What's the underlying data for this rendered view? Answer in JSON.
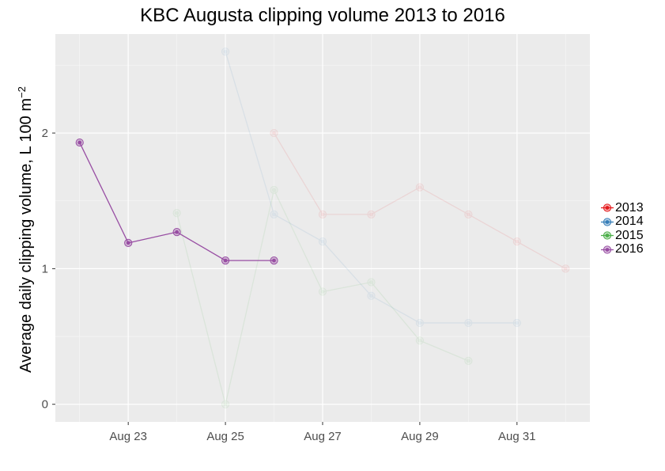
{
  "chart_data": {
    "type": "line",
    "title": "KBC Augusta clipping volume 2013 to 2016",
    "xlabel": "",
    "ylabel": "Average daily clipping volume, L 100 m",
    "ylabel_superscript": "−2",
    "x_ticks": [
      "Aug 23",
      "Aug 25",
      "Aug 27",
      "Aug 29",
      "Aug 31"
    ],
    "y_ticks": [
      "0",
      "1",
      "2"
    ],
    "xlim": [
      "Aug 21.5",
      "Aug 32.5"
    ],
    "ylim": [
      -0.13,
      2.73
    ],
    "grid": true,
    "legend_position": "right",
    "series": [
      {
        "name": "2013",
        "color": "#E41A1C",
        "opacity": 0.1,
        "points": [
          {
            "x": "Aug 26",
            "y": 2.0
          },
          {
            "x": "Aug 27",
            "y": 1.4
          },
          {
            "x": "Aug 28",
            "y": 1.4
          },
          {
            "x": "Aug 29",
            "y": 1.6
          },
          {
            "x": "Aug 30",
            "y": 1.4
          },
          {
            "x": "Aug 31",
            "y": 1.2
          },
          {
            "x": "Sep 1",
            "y": 1.0
          }
        ]
      },
      {
        "name": "2014",
        "color": "#377EB8",
        "opacity": 0.1,
        "points": [
          {
            "x": "Aug 25",
            "y": 2.6
          },
          {
            "x": "Aug 26",
            "y": 1.4
          },
          {
            "x": "Aug 27",
            "y": 1.2
          },
          {
            "x": "Aug 28",
            "y": 0.8
          },
          {
            "x": "Aug 29",
            "y": 0.6
          },
          {
            "x": "Aug 30",
            "y": 0.6
          },
          {
            "x": "Aug 31",
            "y": 0.6
          }
        ]
      },
      {
        "name": "2015",
        "color": "#4DAF4A",
        "opacity": 0.1,
        "points": [
          {
            "x": "Aug 24",
            "y": 1.41
          },
          {
            "x": "Aug 25",
            "y": 0.0
          },
          {
            "x": "Aug 26",
            "y": 1.58
          },
          {
            "x": "Aug 27",
            "y": 0.83
          },
          {
            "x": "Aug 28",
            "y": 0.9
          },
          {
            "x": "Aug 29",
            "y": 0.47
          },
          {
            "x": "Aug 30",
            "y": 0.32
          }
        ]
      },
      {
        "name": "2016",
        "color": "#984EA3",
        "opacity": 1.0,
        "points": [
          {
            "x": "Aug 22",
            "y": 1.93
          },
          {
            "x": "Aug 23",
            "y": 1.19
          },
          {
            "x": "Aug 24",
            "y": 1.27
          },
          {
            "x": "Aug 25",
            "y": 1.06
          },
          {
            "x": "Aug 26",
            "y": 1.06
          }
        ]
      }
    ]
  },
  "panel_background": "#EBEBEB",
  "grid_color": "#FFFFFF"
}
